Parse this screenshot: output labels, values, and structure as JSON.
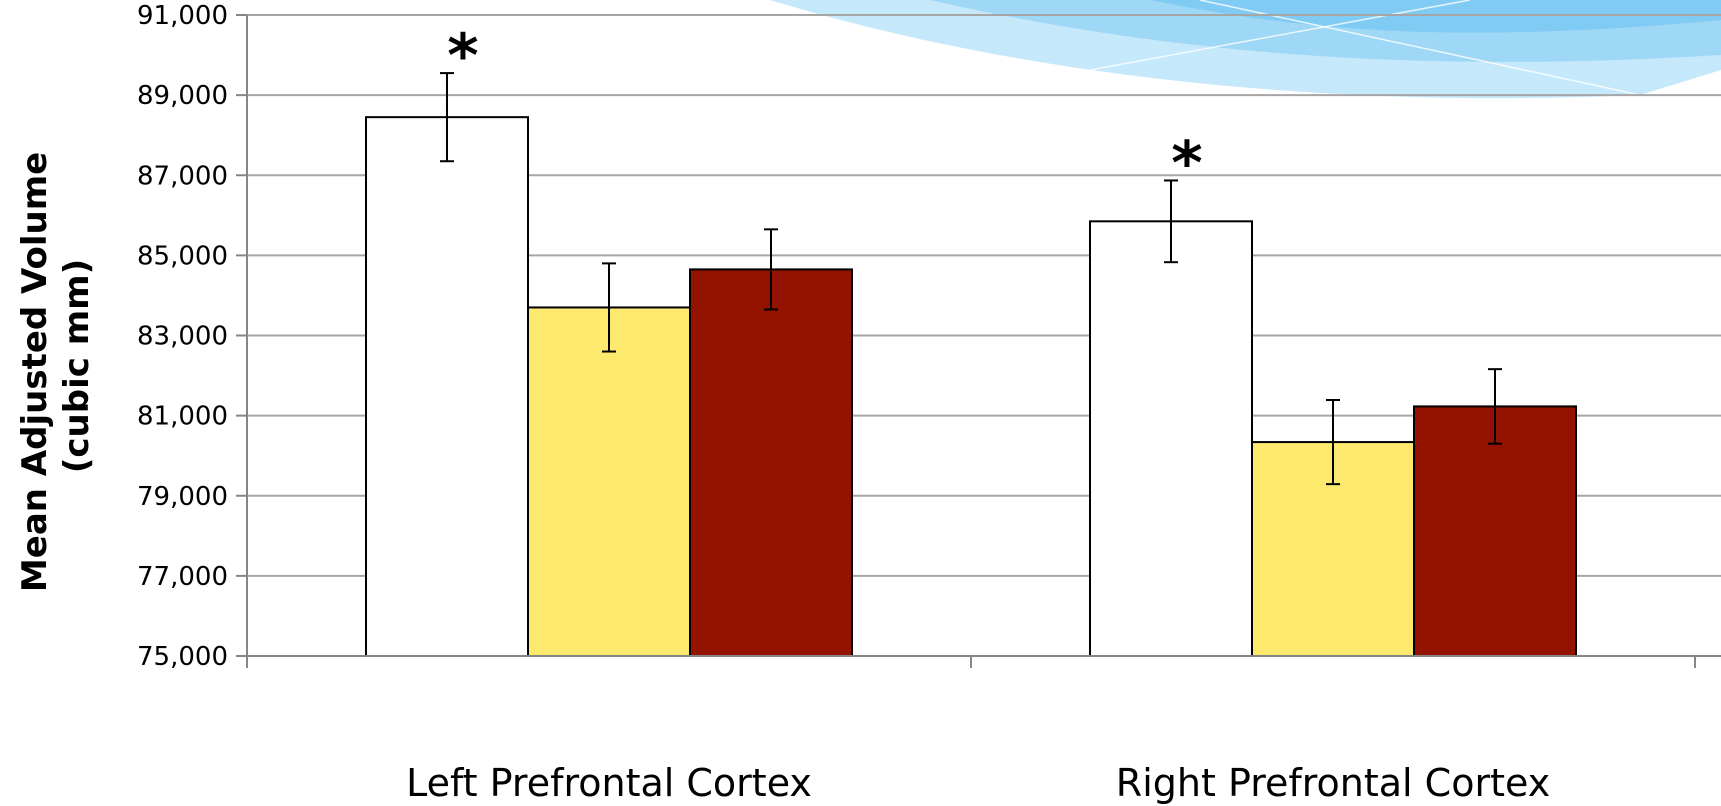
{
  "chart_data": {
    "type": "bar",
    "title": "",
    "xlabel": "",
    "ylabel_line1": "Mean Adjusted Volume",
    "ylabel_line2": "(cubic mm)",
    "ylim": [
      75000,
      91000
    ],
    "yticks": [
      75000,
      77000,
      79000,
      81000,
      83000,
      85000,
      87000,
      89000,
      91000
    ],
    "ytick_labels": [
      "75,000",
      "77,000",
      "79,000",
      "81,000",
      "83,000",
      "85,000",
      "87,000",
      "89,000",
      "91,000"
    ],
    "grid": true,
    "legend": "none",
    "categories": [
      "Left Prefrontal Cortex",
      "Right Prefrontal Cortex"
    ],
    "series": [
      {
        "color": "#ffffff",
        "values": [
          88450,
          85850
        ],
        "error": [
          1100,
          1020
        ],
        "significance": [
          "*",
          "*"
        ]
      },
      {
        "color": "#fde96e",
        "values": [
          83700,
          80340
        ],
        "error": [
          1100,
          1050
        ],
        "significance": [
          "",
          ""
        ]
      },
      {
        "color": "#931200",
        "values": [
          84650,
          81230
        ],
        "error": [
          1000,
          930
        ],
        "significance": [
          "",
          ""
        ]
      }
    ]
  },
  "colors": {
    "grid": "#a6a6a6",
    "axis": "#868686",
    "bar_outline": "#000000",
    "decor_light": "#bfe5fb",
    "decor_mid": "#8ed0f5",
    "decor_dark": "#6cc3f2"
  }
}
